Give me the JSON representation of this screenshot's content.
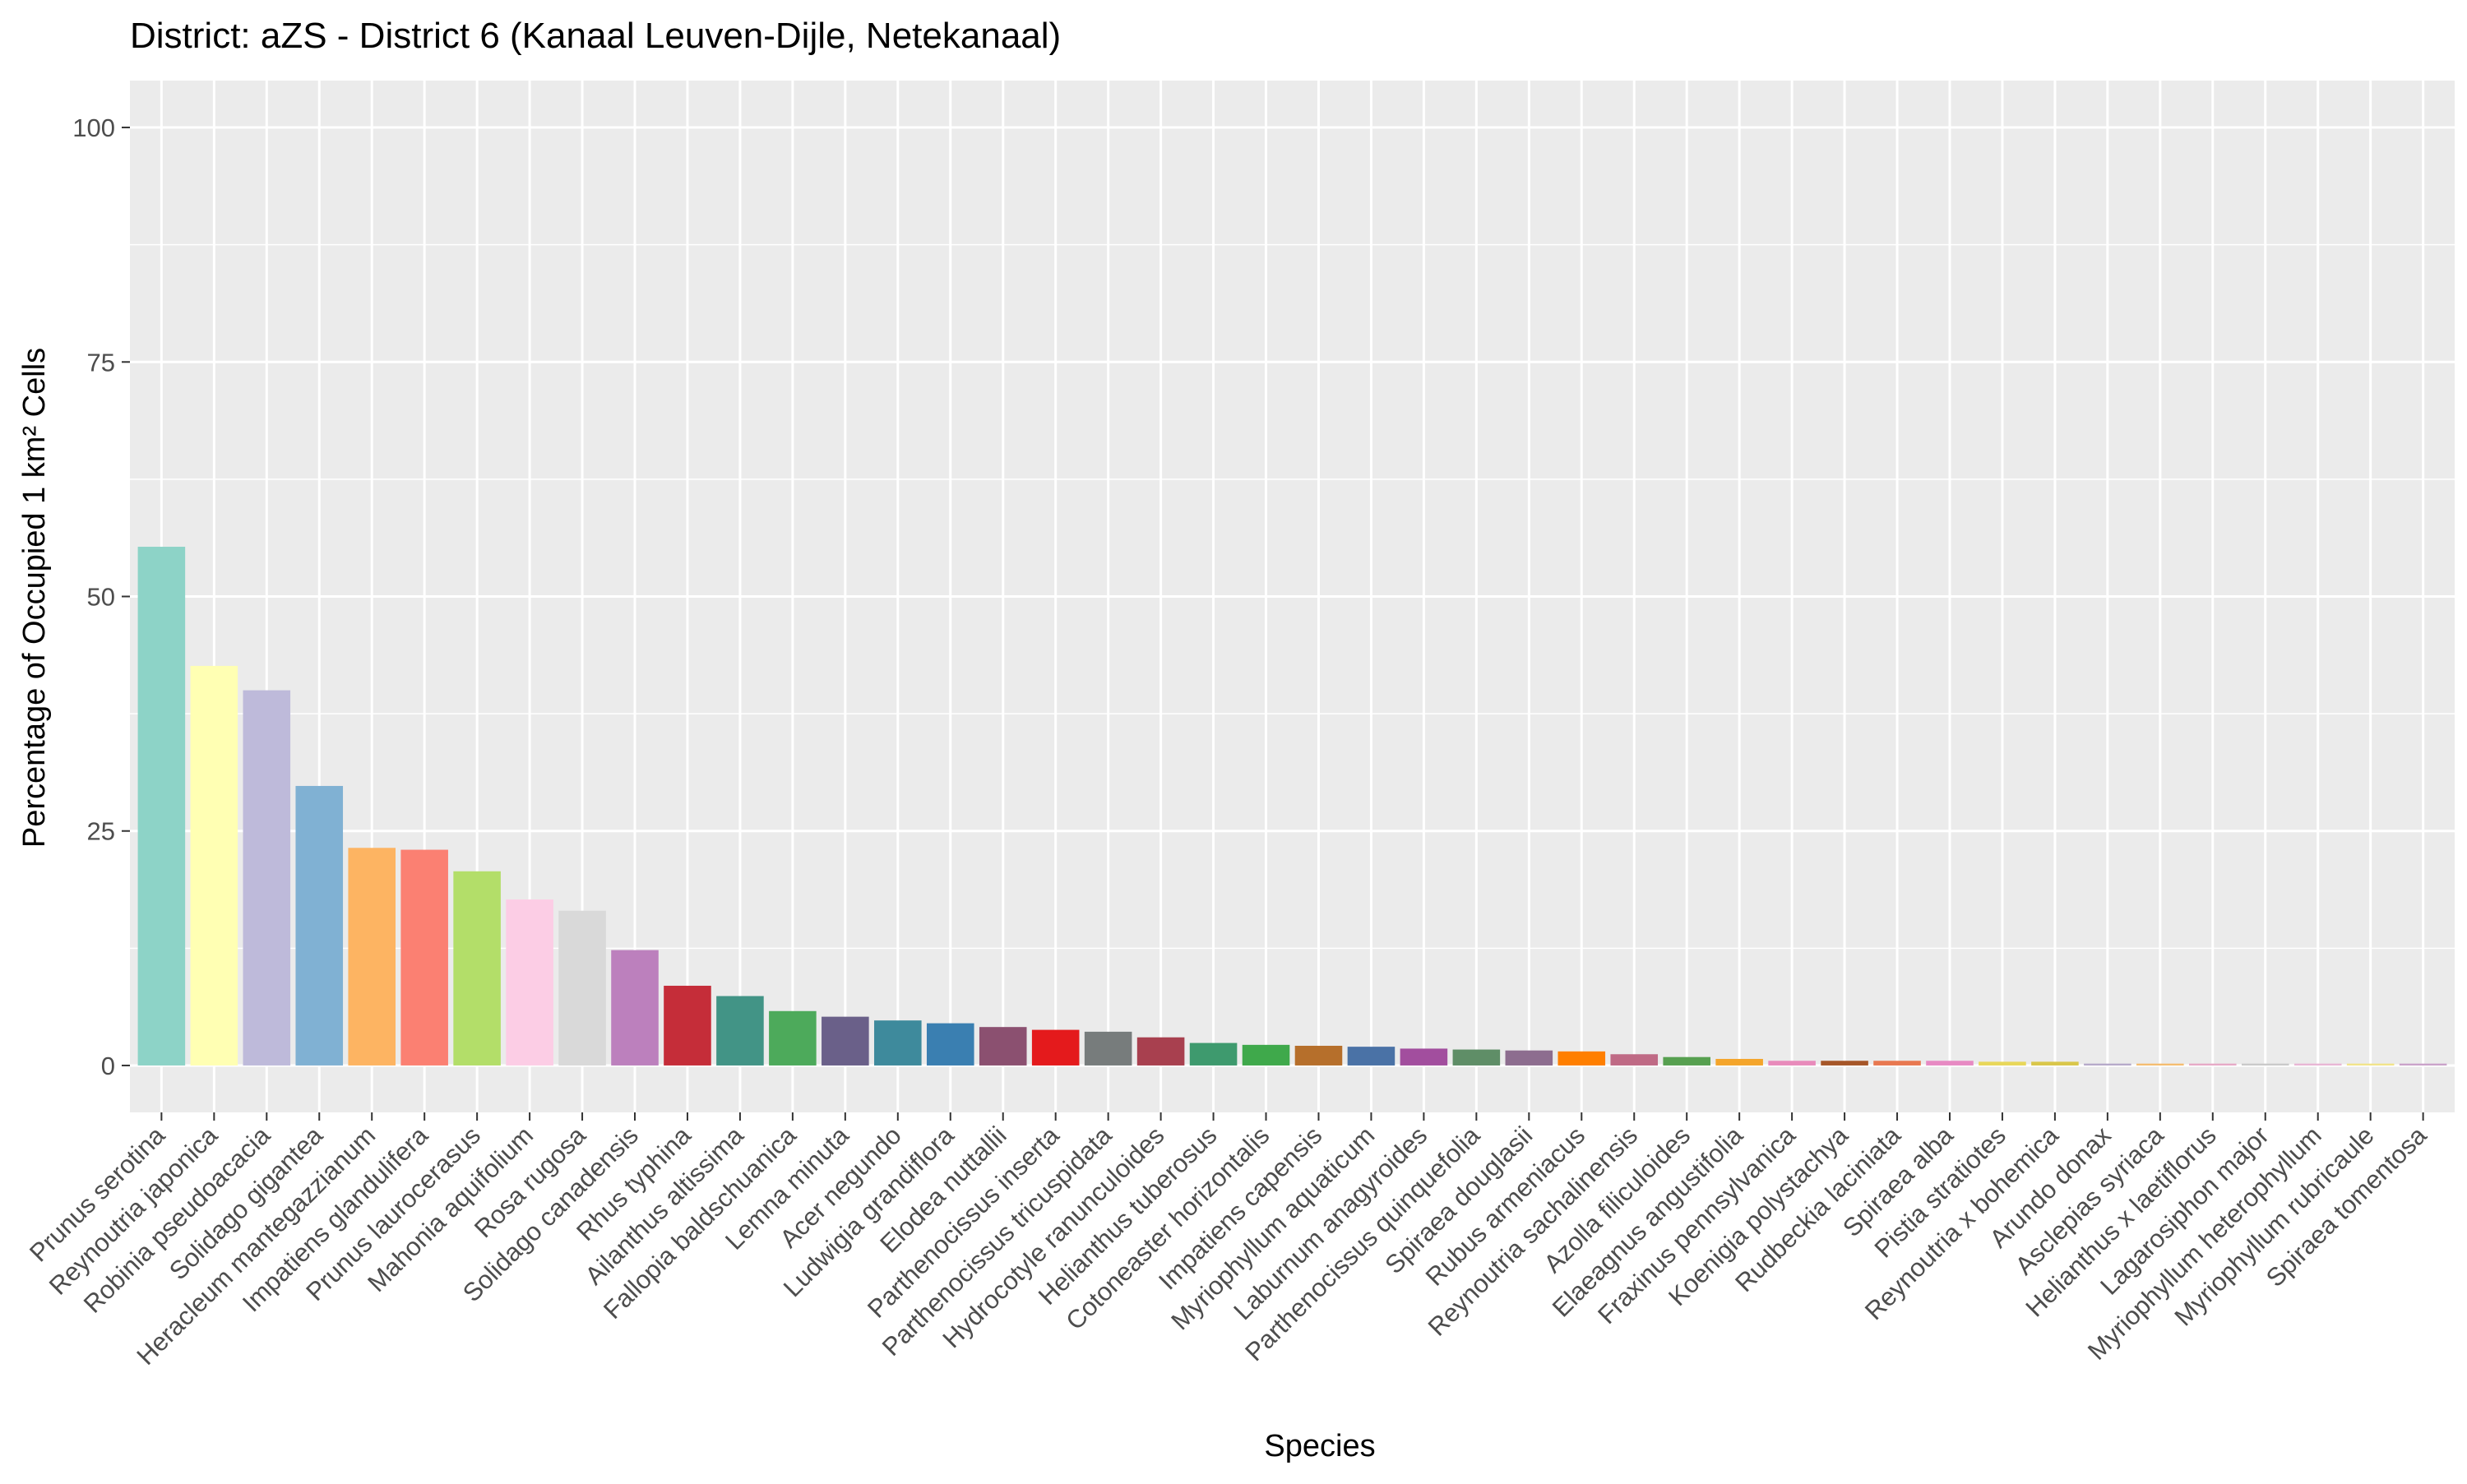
{
  "chart_data": {
    "type": "bar",
    "title": "District: aZS - District 6 (Kanaal Leuven-Dijle, Netekanaal)",
    "xlabel": "Species",
    "ylabel": "Percentage of Occupied 1 km² Cells",
    "ylim": [
      -5,
      105
    ],
    "yticks": [
      0,
      25,
      50,
      75,
      100
    ],
    "grid": true,
    "legend": "none",
    "panel_background": "#EBEBEB",
    "grid_color": "#FFFFFF",
    "categories": [
      "Prunus serotina",
      "Reynoutria japonica",
      "Robinia pseudoacacia",
      "Solidago gigantea",
      "Heracleum mantegazzianum",
      "Impatiens glandulifera",
      "Prunus laurocerasus",
      "Mahonia aquifolium",
      "Rosa rugosa",
      "Solidago canadensis",
      "Rhus typhina",
      "Ailanthus altissima",
      "Fallopia baldschuanica",
      "Lemna minuta",
      "Acer negundo",
      "Ludwigia grandiflora",
      "Elodea nuttallii",
      "Parthenocissus inserta",
      "Parthenocissus tricuspidata",
      "Hydrocotyle ranunculoides",
      "Helianthus tuberosus",
      "Cotoneaster horizontalis",
      "Impatiens capensis",
      "Myriophyllum aquaticum",
      "Laburnum anagyroides",
      "Parthenocissus quinquefolia",
      "Spiraea douglasii",
      "Rubus armeniacus",
      "Reynoutria sachalinensis",
      "Azolla filiculoides",
      "Elaeagnus angustifolia",
      "Fraxinus pennsylvanica",
      "Koenigia polystachya",
      "Rudbeckia laciniata",
      "Spiraea alba",
      "Pistia stratiotes",
      "Reynoutria x bohemica",
      "Arundo donax",
      "Asclepias syriaca",
      "Helianthus x laetiflorus",
      "Lagarosiphon major",
      "Myriophyllum heterophyllum",
      "Myriophyllum rubricaule",
      "Spiraea tomentosa"
    ],
    "values": [
      55.3,
      42.6,
      40.0,
      29.8,
      23.2,
      23.0,
      20.7,
      17.7,
      16.5,
      12.3,
      8.5,
      7.4,
      5.8,
      5.2,
      4.8,
      4.5,
      4.1,
      3.8,
      3.6,
      3.0,
      2.4,
      2.2,
      2.1,
      2.0,
      1.8,
      1.7,
      1.6,
      1.5,
      1.2,
      0.9,
      0.7,
      0.5,
      0.5,
      0.5,
      0.5,
      0.4,
      0.4,
      0.2,
      0.2,
      0.2,
      0.2,
      0.2,
      0.2,
      0.2
    ],
    "colors": [
      "#8DD3C7",
      "#FFFFB3",
      "#BEBADA",
      "#80B1D3",
      "#FDB462",
      "#FB8072",
      "#B3DE69",
      "#FCCDE5",
      "#D9D9D9",
      "#BC80BD",
      "#C52D39",
      "#429486",
      "#4DAA5B",
      "#6A6089",
      "#3E8A9C",
      "#3A7FB1",
      "#8B5070",
      "#E41A1C",
      "#777C7C",
      "#A8404F",
      "#3E9A6E",
      "#3FA94B",
      "#B66F2B",
      "#4A72A6",
      "#A24E9E",
      "#5F8E67",
      "#8D6D8F",
      "#FF7F00",
      "#BF6A85",
      "#57A050",
      "#F4A52B",
      "#E88BBB",
      "#A65628",
      "#E87850",
      "#E78AC3",
      "#E8D75A",
      "#D9C64A",
      "#B5A9C9",
      "#F4BC6E",
      "#E6A9C6",
      "#C9C9C9",
      "#E8B5D4",
      "#F1E389",
      "#C9A1C9"
    ]
  }
}
